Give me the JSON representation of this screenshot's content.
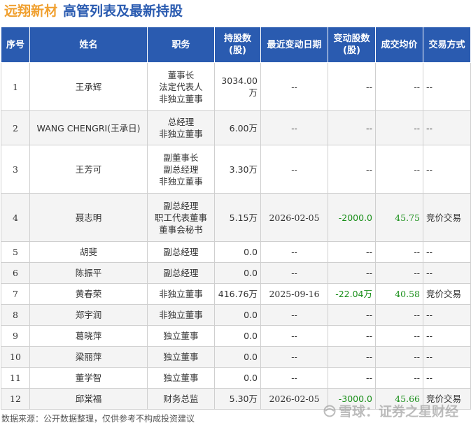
{
  "title": {
    "company": "远翔新材",
    "heading": "高管列表及最新持股"
  },
  "table": {
    "headers": {
      "no": "序号",
      "name": "姓名",
      "position": "职务",
      "holdings_l1": "持股数",
      "holdings_l2": "(股)",
      "date": "最近变动日期",
      "change_l1": "变动股数",
      "change_l2": "(股)",
      "avg_price": "成交均价",
      "method": "交易方式"
    },
    "rows": [
      {
        "no": "1",
        "name": "王承辉",
        "position": [
          "董事长",
          "法定代表人",
          "非独立董事"
        ],
        "holdings": "3034.00万",
        "date": "--",
        "change": "--",
        "avg_price": "--",
        "method": "--"
      },
      {
        "no": "2",
        "name": "WANG CHENGRI(王承日)",
        "position": [
          "总经理",
          "非独立董事"
        ],
        "holdings": "6.00万",
        "date": "--",
        "change": "--",
        "avg_price": "--",
        "method": "--"
      },
      {
        "no": "3",
        "name": "王芳可",
        "position": [
          "副董事长",
          "副总经理",
          "非独立董事"
        ],
        "holdings": "3.30万",
        "date": "--",
        "change": "--",
        "avg_price": "--",
        "method": "--"
      },
      {
        "no": "4",
        "name": "聂志明",
        "position": [
          "副总经理",
          "职工代表董事",
          "董事会秘书"
        ],
        "holdings": "5.15万",
        "date": "2026-02-05",
        "change": "-2000.0",
        "avg_price": "45.75",
        "method": "竞价交易"
      },
      {
        "no": "5",
        "name": "胡斐",
        "position": [
          "副总经理"
        ],
        "holdings": "0.0",
        "date": "--",
        "change": "--",
        "avg_price": "--",
        "method": "--"
      },
      {
        "no": "6",
        "name": "陈振平",
        "position": [
          "副总经理"
        ],
        "holdings": "0.0",
        "date": "--",
        "change": "--",
        "avg_price": "--",
        "method": "--"
      },
      {
        "no": "7",
        "name": "黄春荣",
        "position": [
          "非独立董事"
        ],
        "holdings": "416.76万",
        "date": "2025-09-16",
        "change": "-22.04万",
        "avg_price": "40.58",
        "method": "竞价交易"
      },
      {
        "no": "8",
        "name": "郑宇润",
        "position": [
          "非独立董事"
        ],
        "holdings": "0.0",
        "date": "--",
        "change": "--",
        "avg_price": "--",
        "method": "--"
      },
      {
        "no": "9",
        "name": "葛晓萍",
        "position": [
          "独立董事"
        ],
        "holdings": "0.0",
        "date": "--",
        "change": "--",
        "avg_price": "--",
        "method": "--"
      },
      {
        "no": "10",
        "name": "梁丽萍",
        "position": [
          "独立董事"
        ],
        "holdings": "0.0",
        "date": "--",
        "change": "--",
        "avg_price": "--",
        "method": "--"
      },
      {
        "no": "11",
        "name": "董学智",
        "position": [
          "独立董事"
        ],
        "holdings": "0.0",
        "date": "--",
        "change": "--",
        "avg_price": "--",
        "method": "--"
      },
      {
        "no": "12",
        "name": "邱棠福",
        "position": [
          "财务总监"
        ],
        "holdings": "5.30万",
        "date": "2026-02-05",
        "change": "-3000.0",
        "avg_price": "45.66",
        "method": "竞价交易"
      }
    ]
  },
  "footer": {
    "source": "数据来源：公开数据整理，仅供参考不构成投资建议",
    "brand": "雪球：证券之星财经",
    "brand_icon": "snowball-icon"
  },
  "colors": {
    "header_bg": "#2a5bb0",
    "title_company": "#f0a030",
    "title_heading": "#2a5bb0",
    "change_value": "#1a8f1a"
  }
}
